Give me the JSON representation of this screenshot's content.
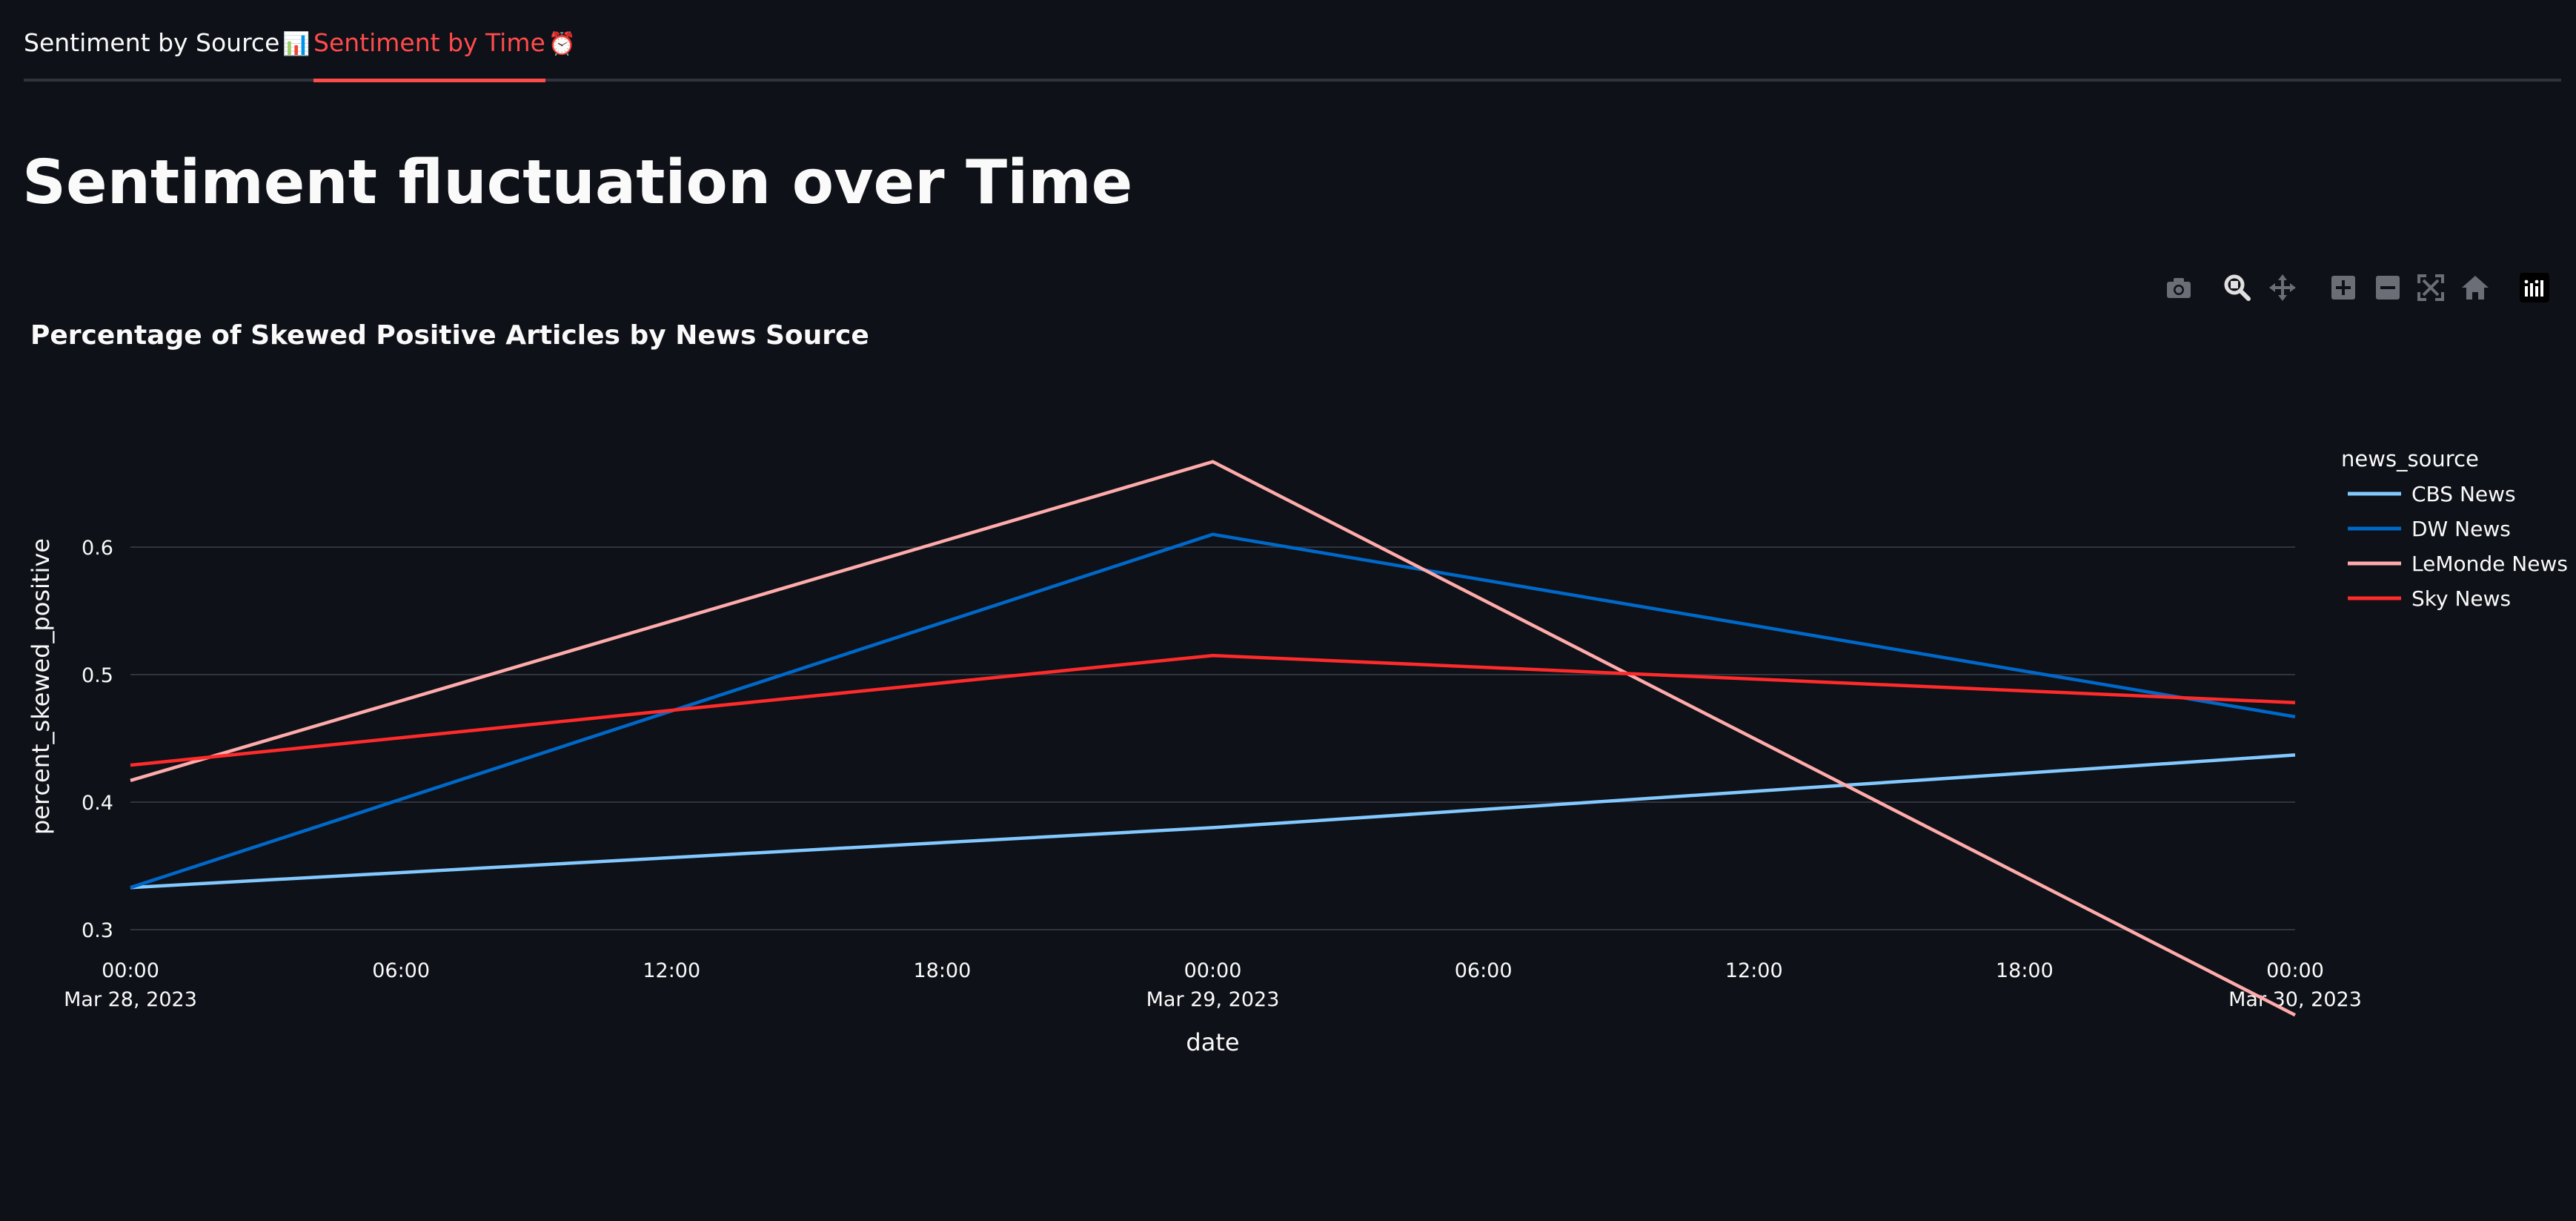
{
  "tabs": [
    {
      "label": "Sentiment by Source",
      "icon": "📊",
      "icon_name": "bar-chart-icon",
      "active": false
    },
    {
      "label": "Sentiment by Time",
      "icon": "⏰",
      "icon_name": "alarm-clock-icon",
      "active": true
    }
  ],
  "page": {
    "title": "Sentiment fluctuation over Time"
  },
  "modebar": {
    "buttons": [
      "camera-icon",
      "zoom-icon",
      "pan-icon",
      "zoom-in-icon",
      "zoom-out-icon",
      "autoscale-icon",
      "reset-axes-icon",
      "plotly-logo-icon"
    ]
  },
  "colors": {
    "background": "#0e1117",
    "accent": "#ff4b4b",
    "text": "#fafafa",
    "grid": "#31333f"
  },
  "chart_data": {
    "type": "line",
    "title": "Percentage of Skewed Positive Articles by News Source",
    "xlabel": "date",
    "ylabel": "percent_skewed_positive",
    "x": [
      "2023-03-28 00:00",
      "2023-03-29 00:00",
      "2023-03-30 00:00"
    ],
    "x_ticks": [
      {
        "time": "00:00",
        "date": "Mar 28, 2023"
      },
      {
        "time": "06:00",
        "date": ""
      },
      {
        "time": "12:00",
        "date": ""
      },
      {
        "time": "18:00",
        "date": ""
      },
      {
        "time": "00:00",
        "date": "Mar 29, 2023"
      },
      {
        "time": "06:00",
        "date": ""
      },
      {
        "time": "12:00",
        "date": ""
      },
      {
        "time": "18:00",
        "date": ""
      },
      {
        "time": "00:00",
        "date": "Mar 30, 2023"
      }
    ],
    "y_ticks": [
      0.3,
      0.4,
      0.5,
      0.6
    ],
    "ylim": [
      0.2,
      0.7
    ],
    "grid": true,
    "legend_title": "news_source",
    "legend_position": "right",
    "series": [
      {
        "name": "CBS News",
        "color": "#83c9ff",
        "values": [
          0.333,
          0.38,
          0.437
        ]
      },
      {
        "name": "DW News",
        "color": "#0068c9",
        "values": [
          0.333,
          0.61,
          0.467
        ]
      },
      {
        "name": "LeMonde News",
        "color": "#ffabab",
        "values": [
          0.417,
          0.667,
          0.233
        ]
      },
      {
        "name": "Sky News",
        "color": "#ff2b2b",
        "values": [
          0.429,
          0.515,
          0.478
        ]
      }
    ]
  }
}
